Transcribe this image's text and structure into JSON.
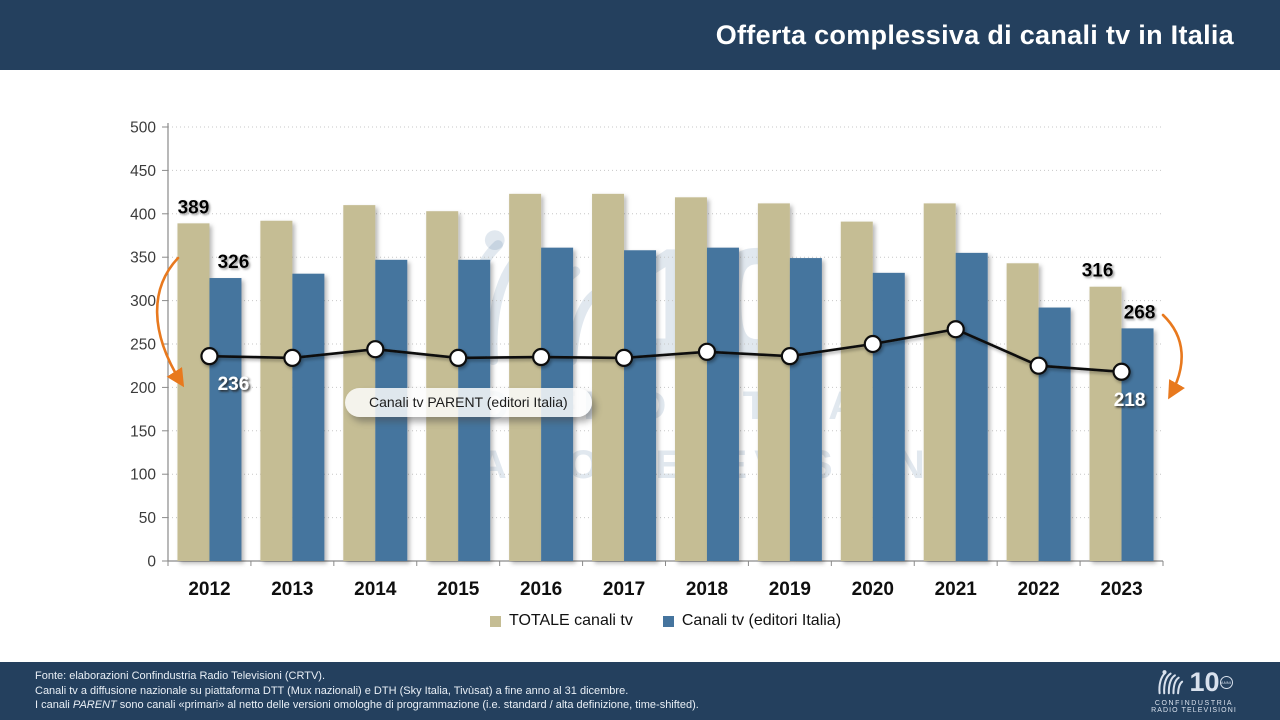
{
  "header": {
    "title": "Offerta complessiva di canali tv in Italia"
  },
  "chart_data": {
    "type": "bar",
    "title": "Offerta complessiva di canali tv in Italia",
    "categories": [
      "2012",
      "2013",
      "2014",
      "2015",
      "2016",
      "2017",
      "2018",
      "2019",
      "2020",
      "2021",
      "2022",
      "2023"
    ],
    "series": [
      {
        "name": "TOTALE canali tv",
        "type": "bar",
        "color": "#C5BD94",
        "values": [
          389,
          392,
          410,
          403,
          423,
          423,
          419,
          412,
          391,
          412,
          343,
          316
        ]
      },
      {
        "name": "Canali tv (editori Italia)",
        "type": "bar",
        "color": "#45749E",
        "values": [
          326,
          331,
          347,
          347,
          361,
          358,
          361,
          349,
          332,
          355,
          292,
          268
        ]
      },
      {
        "name": "Canali tv PARENT (editori Italia)",
        "type": "line",
        "color": "#111111",
        "values": [
          236,
          234,
          244,
          234,
          235,
          234,
          241,
          236,
          250,
          267,
          225,
          218
        ]
      }
    ],
    "ylim": [
      0,
      500
    ],
    "ytick_step": 50,
    "grid": true,
    "legend_position": "bottom",
    "value_labels": {
      "first_group": [
        389,
        326,
        236
      ],
      "last_group": [
        316,
        268,
        218
      ]
    },
    "annotation_color": "#E8791E"
  },
  "watermark": {
    "number": "10",
    "line1": "CONFINDUSTRIA",
    "line2": "RADIO TELEVISIONI"
  },
  "footer": {
    "line1": "Fonte: elaborazioni Confindustria Radio Televisioni (CRTV).",
    "line2": "Canali tv a diffusione nazionale su piattaforma DTT (Mux nazionali) e DTH (Sky Italia, Tivùsat) a fine anno al 31 dicembre.",
    "line3_prefix": "I canali ",
    "line3_italic": "PARENT",
    "line3_suffix": " sono canali «primari» al netto delle versioni omologhe di programmazione (i.e. standard / alta definizione, time-shifted).",
    "logo": {
      "number": "10",
      "badge": "ANNI",
      "org1": "CONFINDUSTRIA",
      "org2": "RADIO TELEVISIONI"
    }
  },
  "colors": {
    "header_bg": "#24405E",
    "footer_bg": "#24405E",
    "bar_total": "#C5BD94",
    "bar_italy": "#45749E",
    "line": "#111111",
    "accent_orange": "#E8791E",
    "grid": "#C7C7C7",
    "axis": "#8A8A8A",
    "watermark": "#44709E"
  }
}
